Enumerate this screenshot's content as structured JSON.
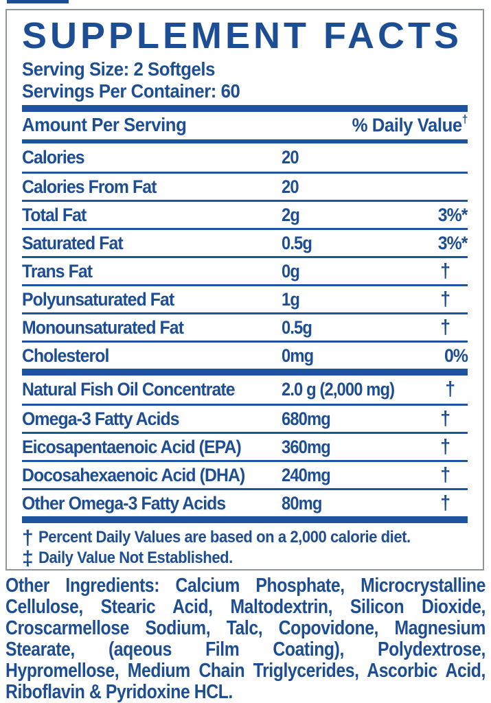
{
  "panel": {
    "title": "SUPPLEMENT FACTS",
    "serving_size": "Serving Size: 2 Softgels",
    "servings_per_container": "Servings Per Container: 60",
    "header": {
      "amount": "Amount Per Serving",
      "daily_value": "% Daily Value",
      "daily_value_mark": "†"
    },
    "rows": [
      {
        "name": "Calories",
        "amount": "20",
        "dv": ""
      },
      {
        "name": "Calories From Fat",
        "amount": "20",
        "dv": ""
      },
      {
        "name": "Total Fat",
        "amount": "2g",
        "dv": "3%*"
      },
      {
        "name": "Saturated Fat",
        "amount": "0.5g",
        "dv": "3%*"
      },
      {
        "name": "Trans Fat",
        "amount": "0g",
        "dv": "†"
      },
      {
        "name": "Polyunsaturated Fat",
        "amount": "1g",
        "dv": "†"
      },
      {
        "name": "Monounsaturated Fat",
        "amount": "0.5g",
        "dv": "†"
      },
      {
        "name": "Cholesterol",
        "amount": "0mg",
        "dv": "0%",
        "thick_after": true
      },
      {
        "name": "Natural Fish Oil Concentrate",
        "amount": "2.0 g (2,000 mg)",
        "dv": "†"
      },
      {
        "name": "Omega-3 Fatty Acids",
        "amount": "680mg",
        "dv": "†"
      },
      {
        "name": "Eicosapentaenoic Acid (EPA)",
        "amount": "360mg",
        "dv": "†"
      },
      {
        "name": "Docosahexaenoic Acid (DHA)",
        "amount": "240mg",
        "dv": "†"
      },
      {
        "name": "Other Omega-3 Fatty Acids",
        "amount": "80mg",
        "dv": "†"
      }
    ],
    "footnotes": [
      {
        "symbol": "†",
        "text": "Percent Daily Values are based on a 2,000 calorie diet."
      },
      {
        "symbol": "‡",
        "text": "Daily Value Not Established."
      }
    ]
  },
  "other_ingredients": {
    "label": "Other Ingredients:",
    "text": "Calcium Phosphate, Microcrystalline Cellulose, Stearic Acid, Maltodextrin, Silicon Dioxide, Croscarmellose Sodium, Talc, Copovidone, Magnesium Stearate, (aqeous Film Coating), Polydextrose, Hypromellose, Medium Chain Triglycerides, Ascorbic Acid, Riboflavin & Pyridoxine HCL."
  },
  "colors": {
    "text_blue": "#1d4e94",
    "bar_blue": "#1e539e",
    "border_gray": "#8f969b"
  }
}
